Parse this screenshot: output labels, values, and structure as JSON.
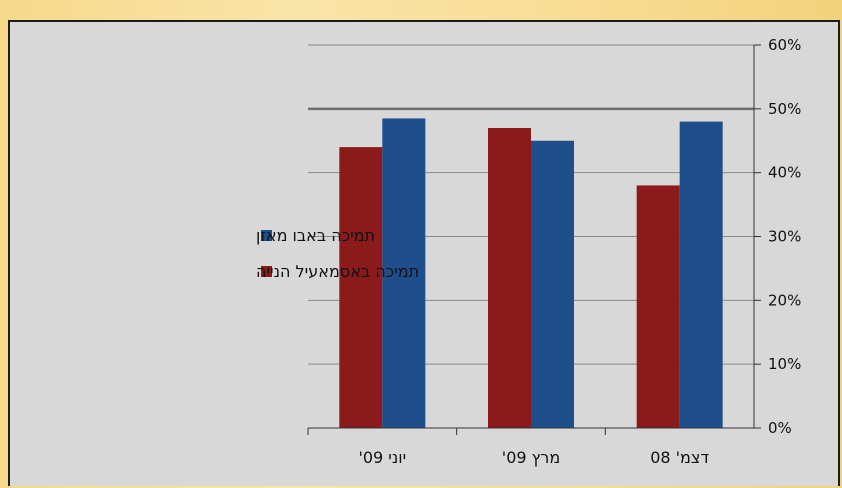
{
  "chart_data": {
    "type": "bar",
    "categories": [
      "דצמ' 08",
      "מרץ 09'",
      "יוני 09'"
    ],
    "series": [
      {
        "name": "תמיכה באבו מאזן",
        "color": "#1f4e8c",
        "values": [
          48,
          45,
          48.5
        ]
      },
      {
        "name": "תמיכה באסמאעיל הנייה",
        "color": "#8b1a1a",
        "values": [
          38,
          47,
          44
        ]
      }
    ],
    "y_ticks": [
      "0%",
      "10%",
      "20%",
      "30%",
      "40%",
      "50%",
      "60%"
    ],
    "ylim": [
      0,
      60
    ],
    "y_axis_side": "right",
    "highlight_line_at": 50,
    "legend_position": "left",
    "grid": true
  }
}
